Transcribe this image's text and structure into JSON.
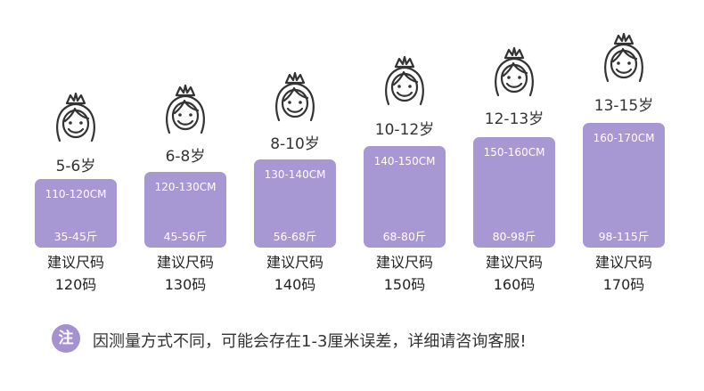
{
  "columns": [
    {
      "age": "5-6岁",
      "height": "110-120CM",
      "weight": "35-45斤",
      "rec_label": "建议尺码",
      "rec_size": "120码"
    },
    {
      "age": "6-8岁",
      "height": "120-130CM",
      "weight": "45-56斤",
      "rec_label": "建议尺码",
      "rec_size": "130码"
    },
    {
      "age": "8-10岁",
      "height": "130-140CM",
      "weight": "56-68斤",
      "rec_label": "建议尺码",
      "rec_size": "140码"
    },
    {
      "age": "10-12岁",
      "height": "140-150CM",
      "weight": "68-80斤",
      "rec_label": "建议尺码",
      "rec_size": "150码"
    },
    {
      "age": "12-13岁",
      "height": "150-160CM",
      "weight": "80-98斤",
      "rec_label": "建议尺码",
      "rec_size": "160码"
    },
    {
      "age": "13-15岁",
      "height": "160-170CM",
      "weight": "98-115斤",
      "rec_label": "建议尺码",
      "rec_size": "170码"
    }
  ],
  "icons": {
    "girl": "girl-with-tiara-icon"
  },
  "note": {
    "badge": "注",
    "text": "因测量方式不同，可能会存在1-3厘米误差，详细请咨询客服!"
  },
  "colors": {
    "bar": "#a797d2",
    "badge": "#a591cf",
    "text": "#333333"
  }
}
